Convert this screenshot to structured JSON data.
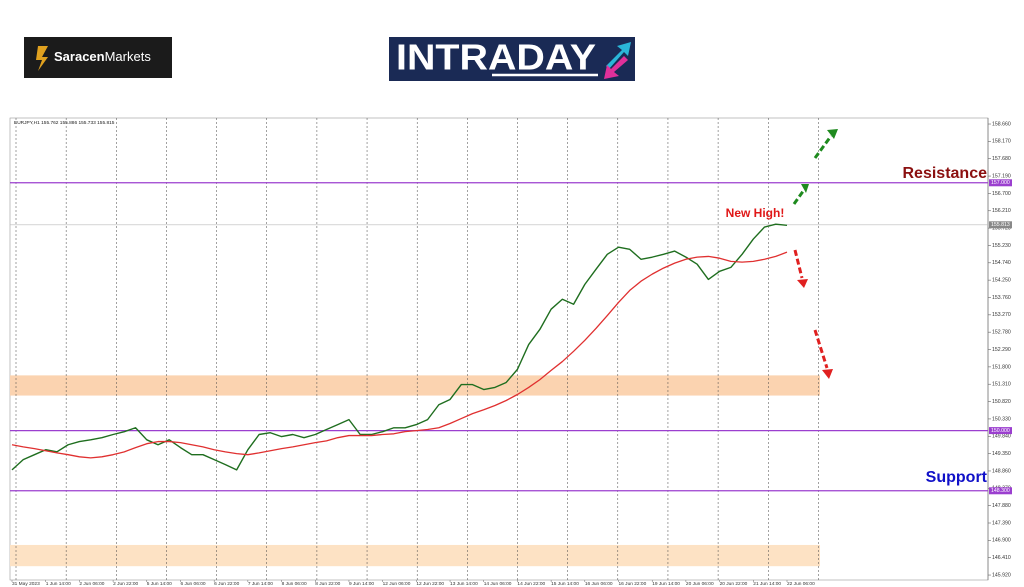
{
  "header": {
    "brand_bold": "Saracen",
    "brand_light": "Markets",
    "logo_text": "INTRADAY"
  },
  "chart_data": {
    "type": "line",
    "info": "EURJPY,H1 155.762 155.886 155.733 155.815",
    "categories": [
      "31 May 2023",
      null,
      null,
      "1 Jun 14:00",
      null,
      null,
      "2 Jun 06:00",
      null,
      null,
      "2 Jun 22:00",
      null,
      null,
      "5 Jun 14:00",
      null,
      null,
      "6 Jun 06:00",
      null,
      null,
      "6 Jun 22:00",
      null,
      null,
      "7 Jun 14:00",
      null,
      null,
      "8 Jun 06:00",
      null,
      null,
      "8 Jun 22:00",
      null,
      null,
      "9 Jun 14:00",
      null,
      null,
      "12 Jun 06:00",
      null,
      null,
      "12 Jun 22:00",
      null,
      null,
      "13 Jun 14:00",
      null,
      null,
      "14 Jun 06:00",
      null,
      null,
      "14 Jun 22:00",
      null,
      null,
      "15 Jun 14:00",
      null,
      null,
      "16 Jun 06:00",
      null,
      null,
      "16 Jun 22:00",
      null,
      null,
      "19 Jun 14:00",
      null,
      null,
      "20 Jun 06:00",
      null,
      null,
      "20 Jun 22:00",
      null,
      null,
      "21 Jun 14:00",
      null,
      null,
      "22 Jun 06:00"
    ],
    "series": [
      {
        "color": "#1f6e1f",
        "values": [
          148.89,
          149.18,
          149.32,
          149.46,
          149.4,
          149.6,
          149.69,
          149.74,
          149.8,
          149.89,
          149.97,
          150.08,
          149.74,
          149.6,
          149.74,
          149.52,
          149.32,
          149.32,
          149.18,
          149.04,
          148.89,
          149.46,
          149.89,
          149.94,
          149.83,
          149.89,
          149.8,
          149.89,
          150.03,
          150.17,
          150.31,
          149.89,
          149.89,
          149.97,
          150.08,
          150.08,
          150.17,
          150.31,
          150.73,
          150.88,
          151.3,
          151.3,
          151.16,
          151.22,
          151.36,
          151.73,
          152.43,
          152.86,
          153.43,
          153.71,
          153.57,
          154.13,
          154.56,
          154.98,
          155.18,
          155.12,
          154.84,
          154.9,
          154.98,
          155.07,
          154.9,
          154.7,
          154.27,
          154.5,
          154.61,
          154.98,
          155.41,
          155.75,
          155.83,
          155.8
        ]
      },
      {
        "color": "#e03030",
        "values": [
          149.6,
          149.54,
          149.49,
          149.43,
          149.37,
          149.32,
          149.26,
          149.23,
          149.26,
          149.32,
          149.4,
          149.52,
          149.63,
          149.69,
          149.69,
          149.66,
          149.6,
          149.54,
          149.46,
          149.4,
          149.35,
          149.32,
          149.37,
          149.43,
          149.49,
          149.54,
          149.6,
          149.66,
          149.71,
          149.8,
          149.86,
          149.86,
          149.86,
          149.89,
          149.91,
          149.97,
          150.0,
          150.03,
          150.08,
          150.2,
          150.34,
          150.48,
          150.59,
          150.71,
          150.85,
          151.02,
          151.22,
          151.44,
          151.7,
          151.95,
          152.24,
          152.55,
          152.89,
          153.25,
          153.62,
          153.96,
          154.22,
          154.42,
          154.59,
          154.73,
          154.84,
          154.9,
          154.92,
          154.87,
          154.78,
          154.76,
          154.78,
          154.84,
          154.92,
          155.04
        ]
      }
    ],
    "ylim": [
      145.78,
      158.83
    ],
    "yticks": [
      {
        "value": 158.66,
        "label": "158.660"
      },
      {
        "value": 158.17,
        "label": "158.170"
      },
      {
        "value": 157.68,
        "label": "157.680"
      },
      {
        "value": 157.19,
        "label": "157.190"
      },
      {
        "value": 156.7,
        "label": "156.700"
      },
      {
        "value": 156.21,
        "label": "156.210"
      },
      {
        "value": 155.72,
        "label": "155.720"
      },
      {
        "value": 155.23,
        "label": "155.230"
      },
      {
        "value": 154.74,
        "label": "154.740"
      },
      {
        "value": 154.25,
        "label": "154.250"
      },
      {
        "value": 153.76,
        "label": "153.760"
      },
      {
        "value": 153.27,
        "label": "153.270"
      },
      {
        "value": 152.78,
        "label": "152.780"
      },
      {
        "value": 152.29,
        "label": "152.290"
      },
      {
        "value": 151.8,
        "label": "151.800"
      },
      {
        "value": 151.31,
        "label": "151.310"
      },
      {
        "value": 150.82,
        "label": "150.820"
      },
      {
        "value": 150.33,
        "label": "150.330"
      },
      {
        "value": 149.84,
        "label": "149.840"
      },
      {
        "value": 149.35,
        "label": "149.350"
      },
      {
        "value": 148.86,
        "label": "148.860"
      },
      {
        "value": 148.37,
        "label": "148.370"
      },
      {
        "value": 147.88,
        "label": "147.880"
      },
      {
        "value": 147.39,
        "label": "147.390"
      },
      {
        "value": 146.9,
        "label": "146.900"
      },
      {
        "value": 146.41,
        "label": "146.410"
      },
      {
        "value": 145.92,
        "label": "145.920"
      }
    ],
    "levels": [
      {
        "value": 157.0,
        "label": "157.000",
        "color": "#9b3fcf"
      },
      {
        "value": 150.0,
        "label": "150.000",
        "color": "#9b3fcf"
      },
      {
        "value": 148.3,
        "label": "148.300",
        "color": "#9b3fcf"
      }
    ],
    "current_price": {
      "value": 155.813,
      "label": "155.813",
      "color": "#bbbbbb"
    },
    "zones": [
      {
        "from": 150.99,
        "to": 151.56,
        "color": "#fbd3b0"
      },
      {
        "from": 146.17,
        "to": 146.77,
        "color": "#fde2c4"
      }
    ],
    "annotations": [
      {
        "text": "Resistance",
        "color": "#8b1010"
      },
      {
        "text": "Support",
        "color": "#1010c8"
      },
      {
        "text": "New High!",
        "color": "#e01818"
      }
    ]
  }
}
